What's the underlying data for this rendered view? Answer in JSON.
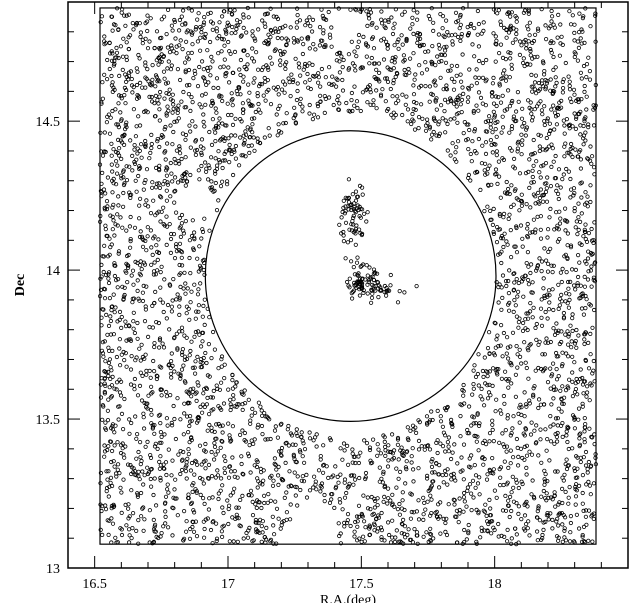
{
  "chart_data": {
    "type": "scatter",
    "title": "",
    "xlabel": "R.A.(deg)",
    "ylabel": "Dec",
    "xlim": [
      16.4,
      18.5
    ],
    "ylim": [
      13.0,
      14.9
    ],
    "x_ticks": [
      16.5,
      17,
      17.5,
      18
    ],
    "x_tick_labels": [
      "16.5",
      "17",
      "17.5",
      "18"
    ],
    "y_ticks": [
      13,
      13.5,
      14,
      14.5
    ],
    "y_tick_labels": [
      "13",
      "13.5",
      "14",
      "14.5"
    ],
    "grid": false,
    "marker": "open-circle",
    "survey_box": {
      "ra": [
        16.52,
        18.38
      ],
      "dec": [
        13.08,
        14.88
      ]
    },
    "exclusion_circle": {
      "center_ra": 17.46,
      "center_dec": 13.98,
      "radius_deg": 0.545
    },
    "background_points": {
      "count": 4200,
      "ra_range": [
        16.52,
        18.38
      ],
      "dec_range": [
        13.08,
        14.88
      ],
      "voids": [
        {
          "ra": 16.88,
          "dec": 14.23,
          "r": 0.06
        },
        {
          "ra": 17.32,
          "dec": 13.14,
          "r": 0.09
        },
        {
          "ra": 17.45,
          "dec": 14.82,
          "r": 0.05
        }
      ]
    },
    "cluster_points": {
      "center_ra": 17.5,
      "center_dec": 13.96,
      "count": 170,
      "arms": [
        {
          "ra": 17.47,
          "dec": 14.18,
          "spread_ra": 0.025,
          "spread_dec": 0.055,
          "n": 70
        },
        {
          "ra": 17.58,
          "dec": 13.94,
          "spread_ra": 0.05,
          "spread_dec": 0.025,
          "n": 40
        },
        {
          "ra": 17.5,
          "dec": 13.96,
          "spread_ra": 0.025,
          "spread_dec": 0.025,
          "n": 60
        }
      ]
    }
  }
}
